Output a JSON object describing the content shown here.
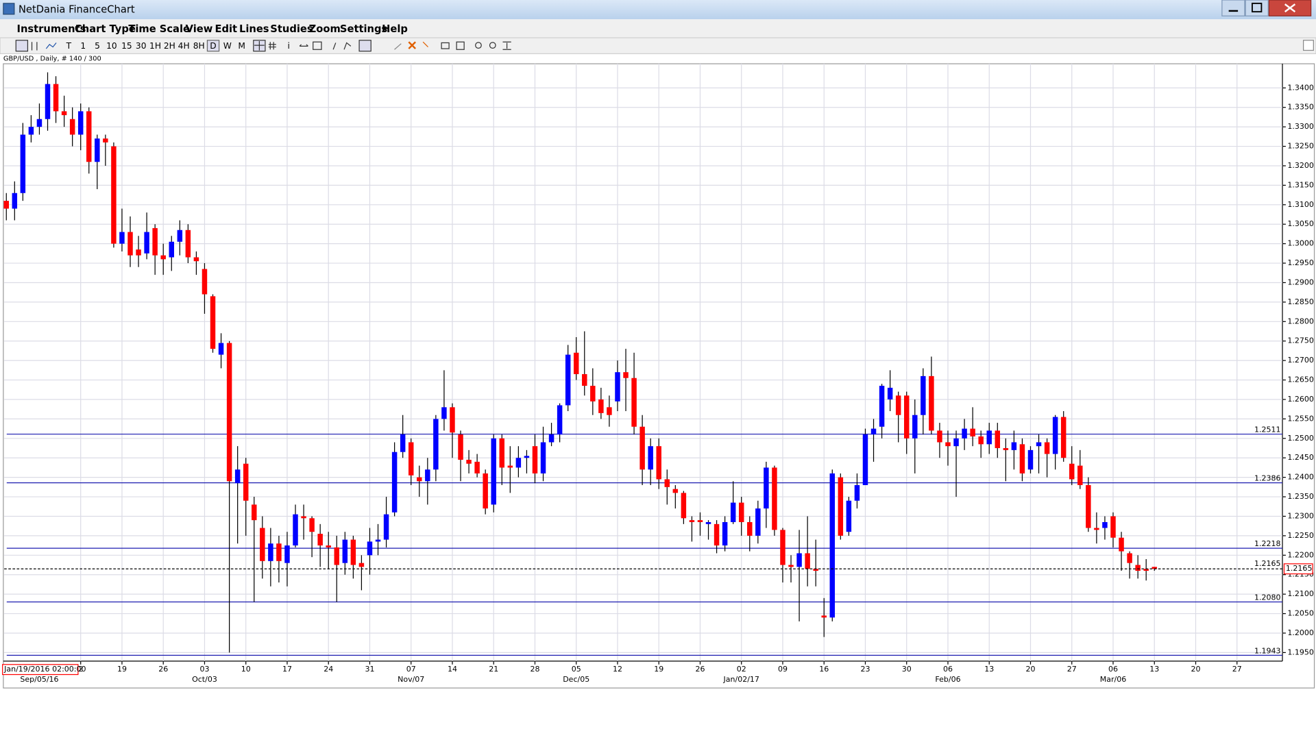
{
  "window": {
    "title": "NetDania FinanceChart"
  },
  "menu": [
    "Instruments",
    "Chart Type",
    "Time Scale",
    "View",
    "Edit",
    "Lines",
    "Studies",
    "Zoom",
    "Settings",
    "Help"
  ],
  "toolbar": [
    "T",
    "1",
    "5",
    "10",
    "15",
    "30",
    "1H",
    "2H",
    "4H",
    "8H",
    "D",
    "W",
    "M",
    "i"
  ],
  "chart_data": {
    "type": "candlestick",
    "symbol_label": "GBP/USD , Daily, # 140 / 300",
    "up_color": "#0000ff",
    "down_color": "#ff0000",
    "grid": true,
    "xlim": [
      -0.26,
      154.5
    ],
    "ylim": [
      1.1928,
      1.3462
    ],
    "yticks": [
      {
        "value": 1.195,
        "label": "1.1950"
      },
      {
        "value": 1.2,
        "label": "1.2000"
      },
      {
        "value": 1.205,
        "label": "1.2050"
      },
      {
        "value": 1.21,
        "label": "1.2100"
      },
      {
        "value": 1.215,
        "label": "1.2150"
      },
      {
        "value": 1.22,
        "label": "1.2200"
      },
      {
        "value": 1.225,
        "label": "1.2250"
      },
      {
        "value": 1.23,
        "label": "1.2300"
      },
      {
        "value": 1.235,
        "label": "1.2350"
      },
      {
        "value": 1.24,
        "label": "1.2400"
      },
      {
        "value": 1.245,
        "label": "1.2450"
      },
      {
        "value": 1.25,
        "label": "1.2500"
      },
      {
        "value": 1.255,
        "label": "1.2550"
      },
      {
        "value": 1.26,
        "label": "1.2600"
      },
      {
        "value": 1.265,
        "label": "1.2650"
      },
      {
        "value": 1.27,
        "label": "1.2700"
      },
      {
        "value": 1.275,
        "label": "1.2750"
      },
      {
        "value": 1.28,
        "label": "1.2800"
      },
      {
        "value": 1.285,
        "label": "1.2850"
      },
      {
        "value": 1.29,
        "label": "1.2900"
      },
      {
        "value": 1.295,
        "label": "1.2950"
      },
      {
        "value": 1.3,
        "label": "1.3000"
      },
      {
        "value": 1.305,
        "label": "1.3050"
      },
      {
        "value": 1.31,
        "label": "1.3100"
      },
      {
        "value": 1.315,
        "label": "1.3150"
      },
      {
        "value": 1.32,
        "label": "1.3200"
      },
      {
        "value": 1.325,
        "label": "1.3250"
      },
      {
        "value": 1.33,
        "label": "1.3300"
      },
      {
        "value": 1.335,
        "label": "1.3350"
      },
      {
        "value": 1.34,
        "label": "1.3400"
      }
    ],
    "xticks": [
      {
        "value": 9,
        "label": "2"
      },
      {
        "value": 14,
        "label": "19"
      },
      {
        "value": 19,
        "label": "26"
      },
      {
        "value": 24,
        "label": "03"
      },
      {
        "value": 29,
        "label": "10"
      },
      {
        "value": 34,
        "label": "17"
      },
      {
        "value": 39,
        "label": "24"
      },
      {
        "value": 44,
        "label": "31"
      },
      {
        "value": 49,
        "label": "07"
      },
      {
        "value": 54,
        "label": "14"
      },
      {
        "value": 59,
        "label": "21"
      },
      {
        "value": 64,
        "label": "28"
      },
      {
        "value": 69,
        "label": "05"
      },
      {
        "value": 74,
        "label": "12"
      },
      {
        "value": 79,
        "label": "19"
      },
      {
        "value": 84,
        "label": "26"
      },
      {
        "value": 89,
        "label": "02"
      },
      {
        "value": 94,
        "label": "09"
      },
      {
        "value": 99,
        "label": "16"
      },
      {
        "value": 104,
        "label": "23"
      },
      {
        "value": 109,
        "label": "30"
      },
      {
        "value": 114,
        "label": "06"
      },
      {
        "value": 119,
        "label": "13"
      },
      {
        "value": 124,
        "label": "20"
      },
      {
        "value": 129,
        "label": "27"
      },
      {
        "value": 134,
        "label": "06"
      },
      {
        "value": 139,
        "label": "13"
      },
      {
        "value": 144,
        "label": "20"
      },
      {
        "value": 149,
        "label": "27"
      }
    ],
    "xticks_major": [
      {
        "value": 4,
        "label": "Sep/05/16"
      },
      {
        "value": 24,
        "label": "Oct/03"
      },
      {
        "value": 49,
        "label": "Nov/07"
      },
      {
        "value": 69,
        "label": "Dec/05"
      },
      {
        "value": 89,
        "label": "Jan/02/17"
      },
      {
        "value": 114,
        "label": "Feb/06"
      },
      {
        "value": 134,
        "label": "Mar/06"
      }
    ],
    "cursor_label": "Jan/19/2016 02:00:00",
    "levels": [
      {
        "value": 1.2511,
        "label": "1.2511"
      },
      {
        "value": 1.2386,
        "label": "1.2386"
      },
      {
        "value": 1.2218,
        "label": "1.2218"
      },
      {
        "value": 1.208,
        "label": "1.2080"
      },
      {
        "value": 1.1943,
        "label": "1.1943"
      }
    ],
    "last_price": {
      "value": 1.2165,
      "label": "1.2165"
    },
    "ohlc": [
      [
        1.311,
        1.313,
        1.306,
        1.309
      ],
      [
        1.309,
        1.316,
        1.306,
        1.313
      ],
      [
        1.313,
        1.331,
        1.311,
        1.328
      ],
      [
        1.328,
        1.333,
        1.326,
        1.33
      ],
      [
        1.33,
        1.336,
        1.328,
        1.332
      ],
      [
        1.332,
        1.344,
        1.329,
        1.341
      ],
      [
        1.341,
        1.343,
        1.331,
        1.334
      ],
      [
        1.334,
        1.338,
        1.33,
        1.333
      ],
      [
        1.332,
        1.335,
        1.325,
        1.328
      ],
      [
        1.328,
        1.336,
        1.324,
        1.334
      ],
      [
        1.334,
        1.335,
        1.318,
        1.321
      ],
      [
        1.321,
        1.328,
        1.314,
        1.327
      ],
      [
        1.327,
        1.328,
        1.32,
        1.326
      ],
      [
        1.325,
        1.326,
        1.299,
        1.3
      ],
      [
        1.3,
        1.309,
        1.298,
        1.303
      ],
      [
        1.303,
        1.307,
        1.294,
        1.297
      ],
      [
        1.2985,
        1.302,
        1.294,
        1.297
      ],
      [
        1.2975,
        1.308,
        1.296,
        1.303
      ],
      [
        1.304,
        1.305,
        1.292,
        1.297
      ],
      [
        1.297,
        1.3,
        1.292,
        1.296
      ],
      [
        1.2965,
        1.302,
        1.293,
        1.3005
      ],
      [
        1.3005,
        1.306,
        1.297,
        1.3035
      ],
      [
        1.3035,
        1.305,
        1.295,
        1.2965
      ],
      [
        1.2965,
        1.298,
        1.292,
        1.2955
      ],
      [
        1.2935,
        1.295,
        1.282,
        1.287
      ],
      [
        1.2865,
        1.287,
        1.272,
        1.273
      ],
      [
        1.2715,
        1.277,
        1.268,
        1.2745
      ],
      [
        1.2745,
        1.275,
        1.195,
        1.239
      ],
      [
        1.2385,
        1.248,
        1.223,
        1.242
      ],
      [
        1.2435,
        1.245,
        1.225,
        1.234
      ],
      [
        1.233,
        1.235,
        1.208,
        1.229
      ],
      [
        1.227,
        1.23,
        1.214,
        1.2185
      ],
      [
        1.2185,
        1.227,
        1.212,
        1.223
      ],
      [
        1.223,
        1.225,
        1.213,
        1.2185
      ],
      [
        1.218,
        1.226,
        1.212,
        1.2225
      ],
      [
        1.2225,
        1.233,
        1.222,
        1.2305
      ],
      [
        1.23,
        1.233,
        1.224,
        1.2295
      ],
      [
        1.2295,
        1.23,
        1.2195,
        1.226
      ],
      [
        1.2255,
        1.228,
        1.217,
        1.2225
      ],
      [
        1.2225,
        1.226,
        1.2165,
        1.222
      ],
      [
        1.222,
        1.225,
        1.208,
        1.2175
      ],
      [
        1.218,
        1.226,
        1.215,
        1.224
      ],
      [
        1.224,
        1.225,
        1.214,
        1.2175
      ],
      [
        1.218,
        1.22,
        1.211,
        1.217
      ],
      [
        1.22,
        1.227,
        1.215,
        1.2235
      ],
      [
        1.2235,
        1.228,
        1.22,
        1.224
      ],
      [
        1.224,
        1.235,
        1.222,
        1.2305
      ],
      [
        1.231,
        1.249,
        1.23,
        1.2465
      ],
      [
        1.2465,
        1.256,
        1.245,
        1.251
      ],
      [
        1.249,
        1.25,
        1.238,
        1.2405
      ],
      [
        1.24,
        1.243,
        1.235,
        1.239
      ],
      [
        1.239,
        1.245,
        1.233,
        1.242
      ],
      [
        1.242,
        1.256,
        1.239,
        1.255
      ],
      [
        1.255,
        1.2675,
        1.252,
        1.258
      ],
      [
        1.258,
        1.259,
        1.245,
        1.2515
      ],
      [
        1.251,
        1.252,
        1.239,
        1.2445
      ],
      [
        1.2445,
        1.247,
        1.241,
        1.2435
      ],
      [
        1.244,
        1.246,
        1.24,
        1.241
      ],
      [
        1.241,
        1.242,
        1.2305,
        1.232
      ],
      [
        1.233,
        1.251,
        1.231,
        1.25
      ],
      [
        1.25,
        1.251,
        1.238,
        1.2425
      ],
      [
        1.243,
        1.248,
        1.236,
        1.2425
      ],
      [
        1.2425,
        1.248,
        1.24,
        1.245
      ],
      [
        1.245,
        1.247,
        1.241,
        1.2455
      ],
      [
        1.248,
        1.251,
        1.2385,
        1.241
      ],
      [
        1.241,
        1.253,
        1.239,
        1.249
      ],
      [
        1.249,
        1.254,
        1.248,
        1.251
      ],
      [
        1.251,
        1.259,
        1.249,
        1.2585
      ],
      [
        1.2585,
        1.274,
        1.257,
        1.2715
      ],
      [
        1.272,
        1.276,
        1.265,
        1.2665
      ],
      [
        1.2665,
        1.2775,
        1.261,
        1.2635
      ],
      [
        1.2635,
        1.268,
        1.256,
        1.2595
      ],
      [
        1.26,
        1.263,
        1.255,
        1.2565
      ],
      [
        1.258,
        1.261,
        1.253,
        1.256
      ],
      [
        1.2595,
        1.27,
        1.257,
        1.267
      ],
      [
        1.267,
        1.273,
        1.257,
        1.2655
      ],
      [
        1.2655,
        1.272,
        1.251,
        1.253
      ],
      [
        1.253,
        1.256,
        1.238,
        1.242
      ],
      [
        1.242,
        1.25,
        1.238,
        1.248
      ],
      [
        1.248,
        1.25,
        1.237,
        1.2395
      ],
      [
        1.2395,
        1.242,
        1.233,
        1.2375
      ],
      [
        1.237,
        1.238,
        1.232,
        1.236
      ],
      [
        1.236,
        1.2365,
        1.228,
        1.2295
      ],
      [
        1.229,
        1.23,
        1.2235,
        1.2285
      ],
      [
        1.229,
        1.231,
        1.225,
        1.2285
      ],
      [
        1.228,
        1.229,
        1.224,
        1.2285
      ],
      [
        1.228,
        1.229,
        1.2205,
        1.2225
      ],
      [
        1.2225,
        1.23,
        1.221,
        1.2285
      ],
      [
        1.2285,
        1.239,
        1.228,
        1.2335
      ],
      [
        1.2335,
        1.235,
        1.225,
        1.2285
      ],
      [
        1.2285,
        1.23,
        1.221,
        1.225
      ],
      [
        1.225,
        1.234,
        1.223,
        1.232
      ],
      [
        1.232,
        1.244,
        1.227,
        1.2425
      ],
      [
        1.2425,
        1.243,
        1.225,
        1.2265
      ],
      [
        1.2265,
        1.227,
        1.213,
        1.2175
      ],
      [
        1.2175,
        1.22,
        1.213,
        1.217
      ],
      [
        1.217,
        1.2265,
        1.203,
        1.2205
      ],
      [
        1.2205,
        1.23,
        1.212,
        1.2165
      ],
      [
        1.2165,
        1.224,
        1.212,
        1.216
      ],
      [
        1.2045,
        1.209,
        1.199,
        1.204
      ],
      [
        1.204,
        1.242,
        1.203,
        1.241
      ],
      [
        1.24,
        1.241,
        1.224,
        1.225
      ],
      [
        1.226,
        1.235,
        1.225,
        1.234
      ],
      [
        1.234,
        1.241,
        1.232,
        1.238
      ],
      [
        1.238,
        1.2525,
        1.238,
        1.251
      ],
      [
        1.251,
        1.255,
        1.244,
        1.2525
      ],
      [
        1.253,
        1.264,
        1.25,
        1.2635
      ],
      [
        1.26,
        1.2675,
        1.257,
        1.263
      ],
      [
        1.261,
        1.262,
        1.249,
        1.256
      ],
      [
        1.261,
        1.262,
        1.246,
        1.25
      ],
      [
        1.25,
        1.26,
        1.241,
        1.256
      ],
      [
        1.256,
        1.268,
        1.251,
        1.266
      ],
      [
        1.266,
        1.271,
        1.251,
        1.252
      ],
      [
        1.252,
        1.254,
        1.245,
        1.249
      ],
      [
        1.249,
        1.252,
        1.243,
        1.248
      ],
      [
        1.248,
        1.252,
        1.235,
        1.25
      ],
      [
        1.25,
        1.255,
        1.247,
        1.2525
      ],
      [
        1.2525,
        1.258,
        1.248,
        1.2505
      ],
      [
        1.2505,
        1.252,
        1.245,
        1.2485
      ],
      [
        1.2485,
        1.254,
        1.246,
        1.252
      ],
      [
        1.252,
        1.254,
        1.245,
        1.2475
      ],
      [
        1.2475,
        1.25,
        1.239,
        1.247
      ],
      [
        1.247,
        1.252,
        1.242,
        1.249
      ],
      [
        1.2485,
        1.25,
        1.239,
        1.241
      ],
      [
        1.242,
        1.248,
        1.241,
        1.247
      ],
      [
        1.248,
        1.251,
        1.241,
        1.249
      ],
      [
        1.249,
        1.25,
        1.24,
        1.246
      ],
      [
        1.246,
        1.256,
        1.242,
        1.2555
      ],
      [
        1.2555,
        1.257,
        1.244,
        1.245
      ],
      [
        1.2435,
        1.248,
        1.238,
        1.2395
      ],
      [
        1.243,
        1.247,
        1.237,
        1.238
      ],
      [
        1.238,
        1.24,
        1.226,
        1.227
      ],
      [
        1.227,
        1.231,
        1.223,
        1.2265
      ],
      [
        1.227,
        1.23,
        1.224,
        1.2285
      ],
      [
        1.23,
        1.231,
        1.222,
        1.2245
      ],
      [
        1.2245,
        1.226,
        1.216,
        1.221
      ],
      [
        1.2205,
        1.221,
        1.214,
        1.218
      ],
      [
        1.2175,
        1.22,
        1.214,
        1.216
      ],
      [
        1.2165,
        1.219,
        1.2135,
        1.216
      ],
      [
        1.217,
        1.217,
        1.216,
        1.2165
      ]
    ]
  }
}
